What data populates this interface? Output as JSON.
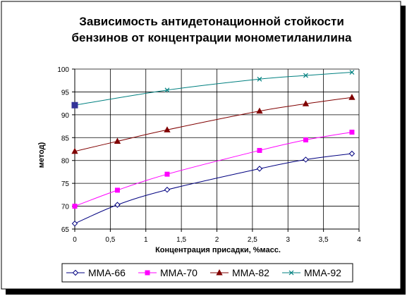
{
  "chart_data": {
    "type": "line",
    "title_lines": [
      "Зависимость антидетонационной стойкости",
      "бензинов от концентрации монометиланилина"
    ],
    "xlabel": "Концентрация присадки, %масс.",
    "ylabel": "метод)",
    "xlim": [
      0,
      4
    ],
    "ylim": [
      65,
      100
    ],
    "x_ticks": [
      0,
      0.5,
      1,
      1.5,
      2,
      2.5,
      3,
      3.5,
      4
    ],
    "x_tick_labels": [
      "0",
      "0,5",
      "1",
      "1,5",
      "2",
      "2,5",
      "3",
      "3,5",
      "4"
    ],
    "y_ticks": [
      65,
      70,
      75,
      80,
      85,
      90,
      95,
      100
    ],
    "y_tick_labels": [
      "65",
      "70",
      "75",
      "80",
      "85",
      "90",
      "95",
      "100"
    ],
    "grid": true,
    "legend_position": "bottom",
    "series": [
      {
        "name": "ММА-66",
        "color": "#000080",
        "marker": "diamond",
        "x": [
          0,
          0.6,
          1.3,
          2.6,
          3.25,
          3.9
        ],
        "y": [
          66.2,
          70.3,
          73.6,
          78.2,
          80.2,
          81.5
        ]
      },
      {
        "name": "ММА-70",
        "color": "#ff00ff",
        "marker": "square",
        "x": [
          0,
          0.6,
          1.3,
          2.6,
          3.25,
          3.9
        ],
        "y": [
          70,
          73.5,
          77,
          82.2,
          84.5,
          86.2
        ]
      },
      {
        "name": "ММА-82",
        "color": "#800000",
        "marker": "triangle",
        "x": [
          0,
          0.6,
          1.3,
          2.6,
          3.25,
          3.9
        ],
        "y": [
          82,
          84.2,
          86.7,
          90.8,
          92.4,
          93.8
        ]
      },
      {
        "name": "ММА-92",
        "color": "#008080",
        "marker": "x",
        "first_marker_color": "#333399",
        "x": [
          0,
          1.3,
          2.6,
          3.25,
          3.9
        ],
        "y": [
          92.1,
          95.4,
          97.8,
          98.6,
          99.3
        ]
      }
    ]
  }
}
